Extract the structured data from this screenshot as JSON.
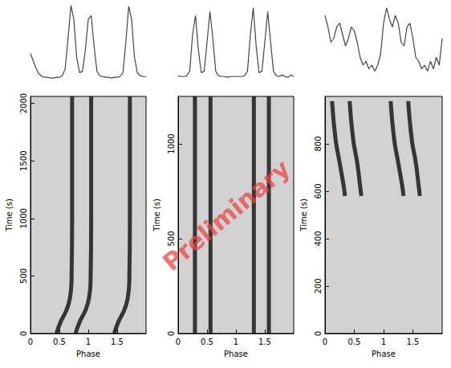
{
  "annotation": "Preliminary",
  "chart_data": [
    {
      "type": "line",
      "tick_labels": false,
      "color": "#444444",
      "xlim": [
        0,
        2
      ],
      "ylim": [
        0,
        1
      ],
      "x": [
        0,
        0.05,
        0.1,
        0.15,
        0.2,
        0.25,
        0.3,
        0.35,
        0.4,
        0.45,
        0.5,
        0.55,
        0.6,
        0.65,
        0.7,
        0.75,
        0.8,
        0.85,
        0.9,
        0.95,
        1,
        1.05,
        1.1,
        1.15,
        1.2,
        1.25,
        1.3,
        1.35,
        1.4,
        1.45,
        1.5,
        1.55,
        1.6,
        1.65,
        1.7,
        1.75,
        1.8,
        1.85,
        1.9,
        1.95,
        2
      ],
      "values": [
        0.35,
        0.25,
        0.15,
        0.08,
        0.05,
        0.04,
        0.04,
        0.03,
        0.03,
        0.04,
        0.04,
        0.06,
        0.15,
        0.55,
        0.98,
        0.8,
        0.3,
        0.1,
        0.12,
        0.4,
        0.8,
        0.85,
        0.45,
        0.12,
        0.06,
        0.05,
        0.04,
        0.04,
        0.03,
        0.04,
        0.04,
        0.05,
        0.1,
        0.5,
        0.97,
        0.8,
        0.3,
        0.1,
        0.06,
        0.05,
        0.05
      ]
    },
    {
      "type": "line",
      "tick_labels": false,
      "color": "#444444",
      "xlim": [
        0,
        2
      ],
      "ylim": [
        0,
        1
      ],
      "x": [
        0,
        0.05,
        0.1,
        0.15,
        0.2,
        0.25,
        0.3,
        0.35,
        0.4,
        0.45,
        0.5,
        0.55,
        0.6,
        0.65,
        0.7,
        0.75,
        0.8,
        0.85,
        0.9,
        0.95,
        1,
        1.05,
        1.1,
        1.15,
        1.2,
        1.25,
        1.3,
        1.35,
        1.4,
        1.45,
        1.5,
        1.55,
        1.6,
        1.65,
        1.7,
        1.75,
        1.8,
        1.85,
        1.9,
        1.95,
        2
      ],
      "values": [
        0.06,
        0.05,
        0.05,
        0.06,
        0.12,
        0.6,
        0.85,
        0.4,
        0.1,
        0.12,
        0.5,
        0.9,
        0.55,
        0.12,
        0.06,
        0.05,
        0.05,
        0.04,
        0.05,
        0.05,
        0.05,
        0.05,
        0.05,
        0.06,
        0.12,
        0.6,
        0.95,
        0.45,
        0.1,
        0.12,
        0.5,
        0.9,
        0.5,
        0.12,
        0.06,
        0.05,
        0.07,
        0.05,
        0.04,
        0.07,
        0.05
      ]
    },
    {
      "type": "line",
      "tick_labels": false,
      "color": "#444444",
      "xlim": [
        0,
        2
      ],
      "ylim": [
        0,
        1
      ],
      "x": [
        0,
        0.05,
        0.1,
        0.15,
        0.2,
        0.25,
        0.3,
        0.35,
        0.4,
        0.45,
        0.5,
        0.55,
        0.6,
        0.65,
        0.7,
        0.75,
        0.8,
        0.85,
        0.9,
        0.95,
        1,
        1.05,
        1.1,
        1.15,
        1.2,
        1.25,
        1.3,
        1.35,
        1.4,
        1.45,
        1.5,
        1.55,
        1.6,
        1.65,
        1.7,
        1.75,
        1.8,
        1.85,
        1.9,
        1.95,
        2
      ],
      "values": [
        0.85,
        0.7,
        0.5,
        0.55,
        0.7,
        0.75,
        0.6,
        0.45,
        0.55,
        0.7,
        0.65,
        0.5,
        0.3,
        0.2,
        0.25,
        0.15,
        0.2,
        0.12,
        0.2,
        0.35,
        0.75,
        0.95,
        0.8,
        0.7,
        0.85,
        0.75,
        0.5,
        0.45,
        0.7,
        0.75,
        0.55,
        0.3,
        0.25,
        0.15,
        0.2,
        0.12,
        0.25,
        0.15,
        0.3,
        0.2,
        0.55
      ]
    },
    {
      "type": "line",
      "xlabel": "Phase",
      "ylabel": "Time (s)",
      "xlim": [
        0,
        2
      ],
      "xticks": [
        0,
        0.5,
        1,
        1.5
      ],
      "ylim": [
        0,
        2060
      ],
      "yticks": [
        0,
        500,
        1000,
        1500,
        2000
      ],
      "series": [
        {
          "color": "#1a1a1a",
          "x": [
            0.45,
            0.52,
            0.62,
            0.68,
            0.71,
            0.72,
            0.72
          ],
          "values": [
            0,
            100,
            200,
            300,
            450,
            1000,
            2060
          ]
        },
        {
          "color": "#1a1a1a",
          "x": [
            0.78,
            0.85,
            0.95,
            1.01,
            1.04,
            1.05,
            1.05
          ],
          "values": [
            0,
            100,
            200,
            300,
            450,
            1000,
            2060
          ]
        },
        {
          "color": "#1a1a1a",
          "x": [
            1.45,
            1.52,
            1.62,
            1.68,
            1.71,
            1.72,
            1.72
          ],
          "values": [
            0,
            100,
            200,
            300,
            450,
            1000,
            2060
          ]
        }
      ]
    },
    {
      "type": "line",
      "xlabel": "Phase",
      "ylabel": "Time (s)",
      "xlim": [
        0,
        2
      ],
      "xticks": [
        0,
        0.5,
        1,
        1.5
      ],
      "ylim": [
        0,
        1250
      ],
      "yticks": [
        0,
        500,
        1000
      ],
      "series": [
        {
          "color": "#1a1a1a",
          "x": [
            0.29,
            0.29
          ],
          "values": [
            0,
            1250
          ]
        },
        {
          "color": "#1a1a1a",
          "x": [
            0.56,
            0.56
          ],
          "values": [
            0,
            1250
          ]
        },
        {
          "color": "#1a1a1a",
          "x": [
            1.31,
            1.31
          ],
          "values": [
            0,
            1250
          ]
        },
        {
          "color": "#1a1a1a",
          "x": [
            1.57,
            1.57
          ],
          "values": [
            0,
            1250
          ]
        }
      ]
    },
    {
      "type": "line",
      "xlabel": "Phase",
      "ylabel": "Time (s)",
      "xlim": [
        0,
        2
      ],
      "xticks": [
        0,
        0.5,
        1,
        1.5
      ],
      "ylim": [
        0,
        1000
      ],
      "yticks": [
        0,
        200,
        400,
        600,
        800
      ],
      "series": [
        {
          "color": "#1a1a1a",
          "x": [
            0.12,
            0.18,
            0.25,
            0.32,
            0.34
          ],
          "values": [
            980,
            820,
            720,
            620,
            580
          ]
        },
        {
          "color": "#1a1a1a",
          "x": [
            0.42,
            0.48,
            0.55,
            0.6,
            0.62
          ],
          "values": [
            980,
            820,
            720,
            620,
            580
          ]
        },
        {
          "color": "#1a1a1a",
          "x": [
            1.12,
            1.18,
            1.25,
            1.32,
            1.34
          ],
          "values": [
            980,
            820,
            720,
            620,
            580
          ]
        },
        {
          "color": "#1a1a1a",
          "x": [
            1.42,
            1.48,
            1.55,
            1.6,
            1.62
          ],
          "values": [
            980,
            820,
            720,
            620,
            580
          ]
        }
      ]
    }
  ]
}
